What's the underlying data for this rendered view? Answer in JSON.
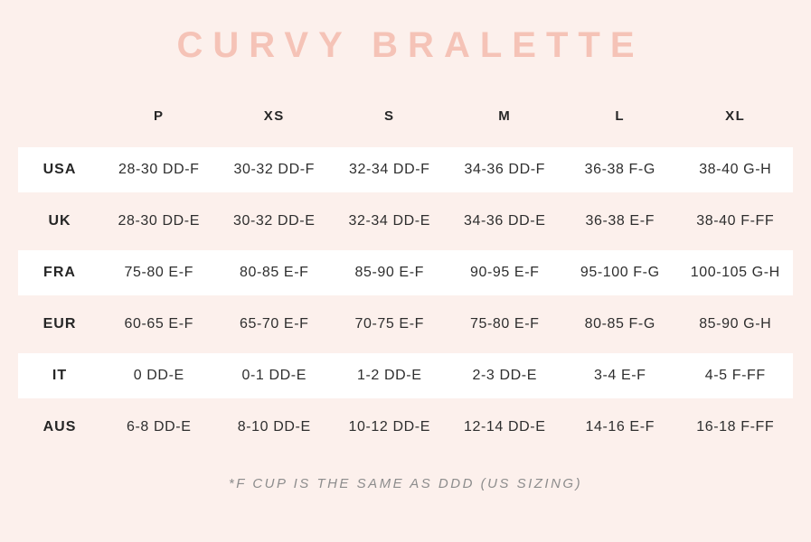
{
  "colors": {
    "background": "#fcf0ec",
    "band": "#ffffff",
    "title": "#f5c3b7",
    "text": "#262626",
    "footnote": "#8d8d8d"
  },
  "chart_data": {
    "type": "table",
    "title": "CURVY BRALETTE",
    "columns": [
      "P",
      "XS",
      "S",
      "M",
      "L",
      "XL"
    ],
    "rows": [
      {
        "label": "USA",
        "values": [
          "28-30 DD-F",
          "30-32 DD-F",
          "32-34 DD-F",
          "34-36 DD-F",
          "36-38 F-G",
          "38-40 G-H"
        ]
      },
      {
        "label": "UK",
        "values": [
          "28-30 DD-E",
          "30-32 DD-E",
          "32-34 DD-E",
          "34-36 DD-E",
          "36-38 E-F",
          "38-40 F-FF"
        ]
      },
      {
        "label": "FRA",
        "values": [
          "75-80 E-F",
          "80-85 E-F",
          "85-90 E-F",
          "90-95 E-F",
          "95-100 F-G",
          "100-105 G-H"
        ]
      },
      {
        "label": "EUR",
        "values": [
          "60-65 E-F",
          "65-70 E-F",
          "70-75 E-F",
          "75-80 E-F",
          "80-85 F-G",
          "85-90 G-H"
        ]
      },
      {
        "label": "IT",
        "values": [
          "0 DD-E",
          "0-1 DD-E",
          "1-2 DD-E",
          "2-3 DD-E",
          "3-4 E-F",
          "4-5 F-FF"
        ]
      },
      {
        "label": "AUS",
        "values": [
          "6-8 DD-E",
          "8-10 DD-E",
          "10-12 DD-E",
          "12-14 DD-E",
          "14-16 E-F",
          "16-18 F-FF"
        ]
      }
    ],
    "footnote": "*F CUP IS THE SAME AS DDD (US SIZING)",
    "layout": {
      "striped_rows": "USA, FRA, IT on white bands; others on pink background"
    }
  }
}
